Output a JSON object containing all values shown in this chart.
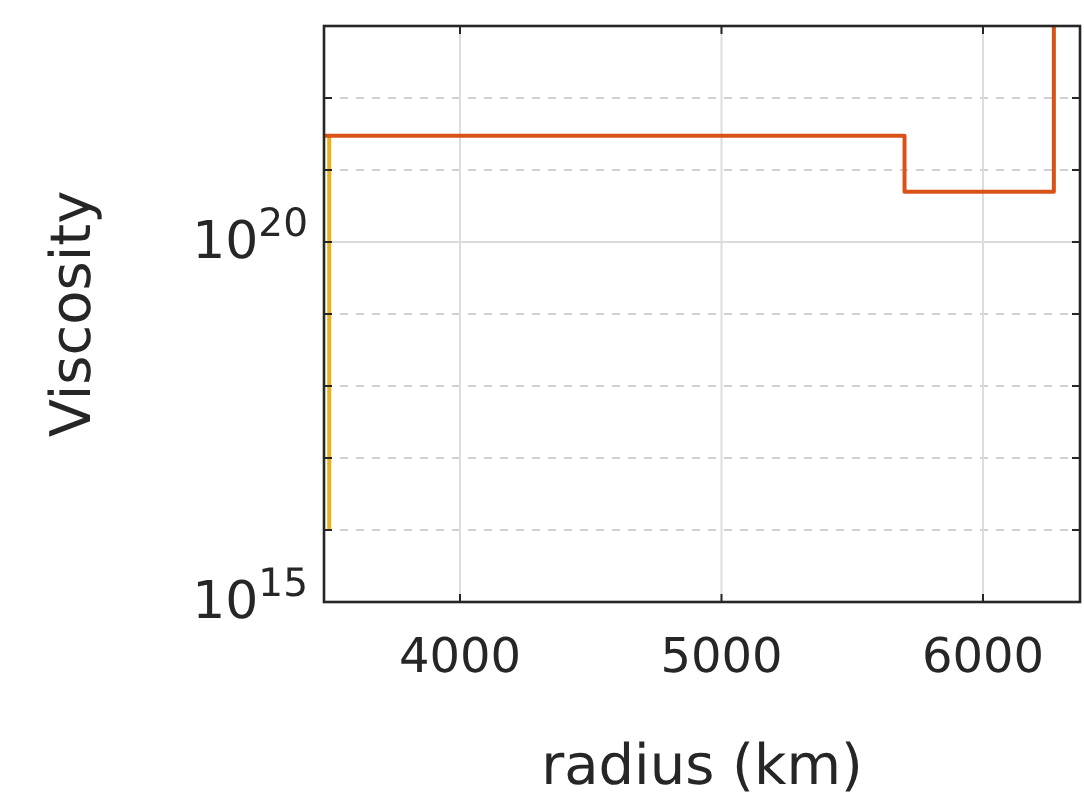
{
  "chart_data": {
    "type": "line",
    "xlabel": "radius (km)",
    "ylabel": "Viscosity",
    "log": "y",
    "grid": true,
    "line_style": "solid",
    "xlim": [
      3480,
      6371
    ],
    "xticks": [
      4000,
      5000,
      6000
    ],
    "ylim": [
      1000000000000000.0,
      1e+23
    ],
    "yticks": [
      {
        "value": 1000000000000000.0,
        "label": "10$^{15}$"
      },
      {
        "value": 1e+16,
        "label": null
      },
      {
        "value": 1e+17,
        "label": null
      },
      {
        "value": 1e+18,
        "label": null
      },
      {
        "value": 1e+19,
        "label": null
      },
      {
        "value": 1e+20,
        "label": "10$^{20}$"
      },
      {
        "value": 1e+21,
        "label": null
      },
      {
        "value": 1e+22,
        "label": null
      }
    ],
    "series": [
      {
        "color": "#edb120",
        "x": [
          3500,
          3500
        ],
        "values": [
          1e+16,
          3e+21
        ]
      },
      {
        "color": "#d95319",
        "x": [
          3480,
          5700,
          5700,
          6271,
          6271
        ],
        "values": [
          3e+21,
          3e+21,
          5e+20,
          5e+20,
          1e+23
        ]
      }
    ]
  }
}
